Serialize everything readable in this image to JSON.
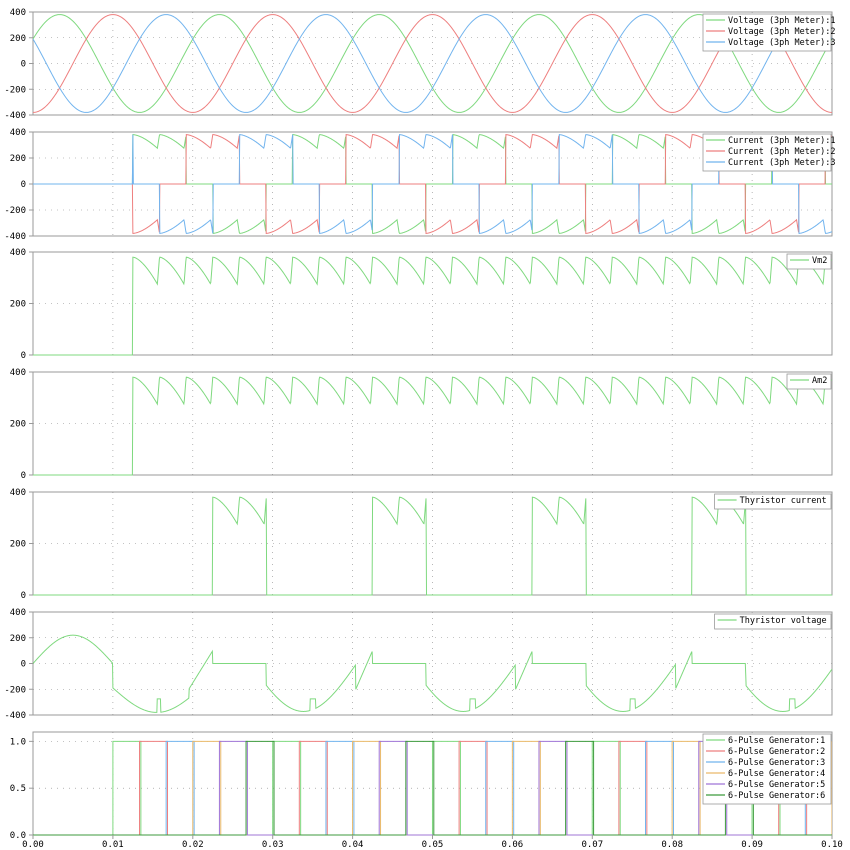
{
  "x_axis": {
    "ticks": [
      "0.00",
      "0.01",
      "0.02",
      "0.03",
      "0.04",
      "0.05",
      "0.06",
      "0.07",
      "0.08",
      "0.09",
      "0.10"
    ],
    "xlim": [
      0,
      0.1
    ]
  },
  "colors": {
    "red": "#ee7f7f",
    "green": "#7fd97f",
    "blue": "#72b4ee",
    "purple": "#9f74d6",
    "orange": "#e9b96a",
    "darkgreen": "#3c9a3c",
    "axis": "#9a9a9a",
    "grid": "#888888"
  },
  "chart_data": [
    {
      "id": "voltage-panel",
      "type": "line",
      "ylim": [
        -400,
        400
      ],
      "yticks": [
        "400",
        "200",
        "0",
        "-200",
        "-400"
      ],
      "legend_position": "top-right",
      "series": [
        {
          "name": "Voltage (3ph Meter):1",
          "color": "#7fd97f",
          "kind": "sine",
          "amplitude": 380,
          "frequency_hz": 50,
          "phase_deg": 30
        },
        {
          "name": "Voltage (3ph Meter):2",
          "color": "#ee7f7f",
          "kind": "sine",
          "amplitude": 380,
          "frequency_hz": 50,
          "phase_deg": -90
        },
        {
          "name": "Voltage (3ph Meter):3",
          "color": "#72b4ee",
          "kind": "sine",
          "amplitude": 380,
          "frequency_hz": 50,
          "phase_deg": 150
        }
      ]
    },
    {
      "id": "current-panel",
      "type": "line",
      "ylim": [
        -400,
        400
      ],
      "yticks": [
        "400",
        "200",
        "0",
        "-200",
        "-400"
      ],
      "legend_position": "top-right",
      "conduction_start_s": 0.0125,
      "peak_value": 380,
      "dip_value": 275,
      "series": [
        {
          "name": "Current (3ph Meter):1",
          "color": "#7fd97f"
        },
        {
          "name": "Current (3ph Meter):2",
          "color": "#ee7f7f"
        },
        {
          "name": "Current (3ph Meter):3",
          "color": "#72b4ee"
        }
      ]
    },
    {
      "id": "vm2-panel",
      "type": "line",
      "ylim": [
        0,
        400
      ],
      "yticks": [
        "400",
        "200",
        "0"
      ],
      "legend_position": "top-right",
      "start_s": 0.0125,
      "peak_value": 380,
      "dip_value": 275,
      "series": [
        {
          "name": "Vm2",
          "color": "#7fd97f"
        }
      ]
    },
    {
      "id": "am2-panel",
      "type": "line",
      "ylim": [
        0,
        400
      ],
      "yticks": [
        "400",
        "200",
        "0"
      ],
      "legend_position": "top-right",
      "start_s": 0.0125,
      "peak_value": 380,
      "dip_value": 275,
      "series": [
        {
          "name": "Am2",
          "color": "#7fd97f"
        }
      ]
    },
    {
      "id": "thyristor-current-panel",
      "type": "line",
      "ylim": [
        0,
        400
      ],
      "yticks": [
        "400",
        "200",
        "0"
      ],
      "legend_position": "top-right",
      "pulses_s": [
        [
          0.0225,
          0.0292
        ],
        [
          0.0425,
          0.0492
        ],
        [
          0.0625,
          0.0692
        ],
        [
          0.0825,
          0.0892
        ]
      ],
      "peak_value": 380,
      "dip_value": 275,
      "series": [
        {
          "name": "Thyristor current",
          "color": "#7fd97f"
        }
      ]
    },
    {
      "id": "thyristor-voltage-panel",
      "type": "line",
      "ylim": [
        -400,
        400
      ],
      "yticks": [
        "400",
        "200",
        "0",
        "-200",
        "-400"
      ],
      "legend_position": "top-right",
      "series": [
        {
          "name": "Thyristor voltage",
          "color": "#7fd97f"
        }
      ]
    },
    {
      "id": "pulse-panel",
      "type": "line",
      "ylim": [
        0,
        1.1
      ],
      "yticks": [
        "1.0",
        "0.5",
        "0.0"
      ],
      "legend_position": "top-right",
      "first_pulse_s": 0.01,
      "pulse_spacing_s": 0.003333,
      "pulse_width_s": 0.0035,
      "series": [
        {
          "name": "6-Pulse Generator:1",
          "color": "#7fd97f"
        },
        {
          "name": "6-Pulse Generator:2",
          "color": "#ee7f7f"
        },
        {
          "name": "6-Pulse Generator:3",
          "color": "#72b4ee"
        },
        {
          "name": "6-Pulse Generator:4",
          "color": "#e9b96a"
        },
        {
          "name": "6-Pulse Generator:5",
          "color": "#9f74d6"
        },
        {
          "name": "6-Pulse Generator:6",
          "color": "#3c9a3c"
        }
      ]
    }
  ]
}
